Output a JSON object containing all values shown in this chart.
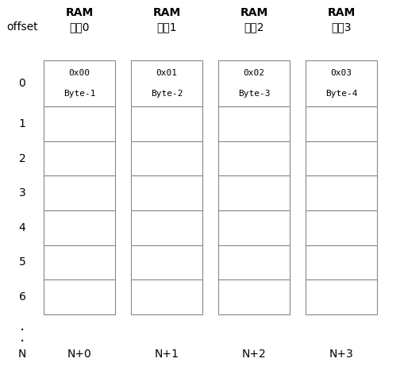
{
  "chip_labels_line1": [
    "RAM",
    "RAM",
    "RAM",
    "RAM"
  ],
  "chip_labels_line2": [
    "芯片0",
    "芯片1",
    "芯片2",
    "芯片3"
  ],
  "chip_addresses": [
    "0x00",
    "0x01",
    "0x02",
    "0x03"
  ],
  "chip_bytes": [
    "Byte-1",
    "Byte-2",
    "Byte-3",
    "Byte-4"
  ],
  "offset_labels": [
    "0",
    "1",
    "2",
    "3",
    "4",
    "5",
    "6"
  ],
  "bottom_offsets": [
    "N+0",
    "N+1",
    "N+2",
    "N+3"
  ],
  "num_chips": 4,
  "num_rows": 7,
  "background": "#ffffff",
  "box_edge_color": "#888888",
  "text_color": "#000000",
  "header_color": "#000000"
}
